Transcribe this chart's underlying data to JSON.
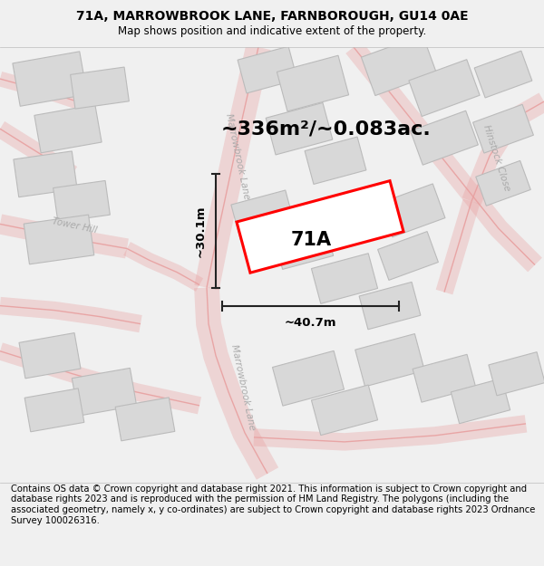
{
  "title_line1": "71A, MARROWBROOK LANE, FARNBOROUGH, GU14 0AE",
  "title_line2": "Map shows position and indicative extent of the property.",
  "area_text": "~336m²/~0.083ac.",
  "label_71A": "71A",
  "width_label": "~40.7m",
  "height_label": "~30.1m",
  "footer_text": "Contains OS data © Crown copyright and database right 2021. This information is subject to Crown copyright and database rights 2023 and is reproduced with the permission of HM Land Registry. The polygons (including the associated geometry, namely x, y co-ordinates) are subject to Crown copyright and database rights 2023 Ordnance Survey 100026316.",
  "bg_color": "#f0f0f0",
  "map_bg": "#f8f8f8",
  "road_stroke": "#e8a0a0",
  "road_fill": "#f5e8e8",
  "building_fill": "#d8d8d8",
  "building_edge": "#bbbbbb",
  "plot_color": "#ff0000",
  "dim_color": "#222222",
  "street_color": "#aaaaaa",
  "tower_hill_color": "#aaaaaa",
  "title_fontsize": 10,
  "subtitle_fontsize": 8.5,
  "area_fontsize": 16,
  "label_fontsize": 15,
  "dim_fontsize": 9.5,
  "footer_fontsize": 7.2,
  "street_fontsize": 7.5
}
